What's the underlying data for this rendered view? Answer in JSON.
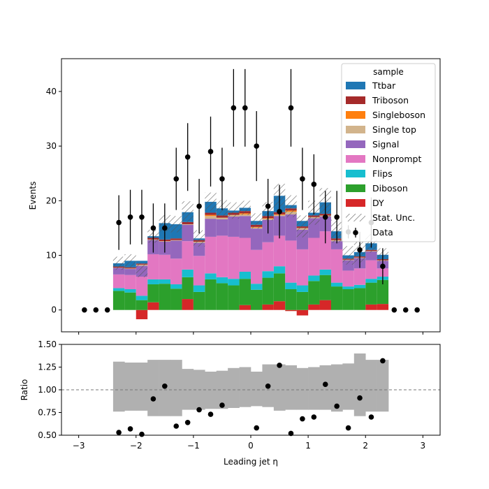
{
  "chart_data": [
    {
      "type": "stacked_histogram",
      "panel": "main",
      "ylabel": "Events",
      "xlabel": "",
      "xlim": [
        -3.3,
        3.3
      ],
      "ylim": [
        -4,
        46
      ],
      "yticks": [
        0,
        10,
        20,
        30,
        40
      ],
      "legend": {
        "title": "sample",
        "placement": "top-right",
        "entries": [
          "Ttbar",
          "Triboson",
          "Singleboson",
          "Single top",
          "Signal",
          "Nonprompt",
          "Flips",
          "Diboson",
          "DY",
          "Stat. Unc.",
          "Data"
        ]
      },
      "bin_edges": [
        -2.4,
        -2.2,
        -2.0,
        -1.8,
        -1.6,
        -1.4,
        -1.2,
        -1.0,
        -0.8,
        -0.6,
        -0.4,
        -0.2,
        0.0,
        0.2,
        0.4,
        0.6,
        0.8,
        1.0,
        1.2,
        1.4,
        1.6,
        1.8,
        2.0,
        2.2,
        2.4
      ],
      "series": [
        {
          "name": "DY",
          "color": "#d62728",
          "values": [
            0,
            0,
            -1.7,
            1.4,
            0,
            0,
            2.0,
            0,
            0,
            0,
            0,
            0.9,
            0,
            1.0,
            1.6,
            -0.2,
            -1.0,
            1.0,
            1.8,
            0,
            0,
            0,
            1.0,
            1.1
          ]
        },
        {
          "name": "Diboson",
          "color": "#2ca02c",
          "values": [
            3.5,
            3.2,
            1.8,
            3.3,
            4.8,
            3.9,
            4.0,
            3.3,
            5.6,
            4.9,
            4.5,
            4.8,
            3.7,
            4.9,
            5.1,
            3.8,
            3.3,
            4.3,
            4.6,
            4.3,
            3.8,
            4.0,
            4.0,
            4.4
          ]
        },
        {
          "name": "Flips",
          "color": "#17becf",
          "values": [
            0.5,
            0.6,
            0.8,
            0.9,
            0.8,
            0.8,
            1.4,
            1.2,
            1.1,
            1.1,
            1.2,
            1.3,
            1.1,
            1.2,
            1.3,
            1.2,
            1.2,
            1.0,
            1.0,
            0.7,
            0.5,
            0.6,
            0.7,
            0.6
          ]
        },
        {
          "name": "Nonprompt",
          "color": "#e377c2",
          "values": [
            2.5,
            2.6,
            3.5,
            4.6,
            4.5,
            4.7,
            5.2,
            5.4,
            6.7,
            7.6,
            7.7,
            6.2,
            6.2,
            5.3,
            5.6,
            7.7,
            6.6,
            6.9,
            7.0,
            6.1,
            2.9,
            3.0,
            3.4,
            1.5
          ]
        },
        {
          "name": "Signal",
          "color": "#9467bd",
          "values": [
            1.2,
            1.1,
            2.0,
            2.6,
            2.4,
            3.3,
            3.0,
            2.4,
            3.3,
            3.0,
            3.7,
            4.0,
            3.9,
            4.1,
            3.6,
            4.8,
            3.6,
            3.6,
            2.7,
            1.5,
            1.9,
            1.9,
            1.6,
            1.4
          ]
        },
        {
          "name": "Single top",
          "color": "#d2b48c",
          "values": [
            0.05,
            0.1,
            0.2,
            0.1,
            0.1,
            0.1,
            0.1,
            0.2,
            0.5,
            0.3,
            0.3,
            0.3,
            0.2,
            0.2,
            0.2,
            0.5,
            0.3,
            0.2,
            0.2,
            0.2,
            0.1,
            0.1,
            0.1,
            0.1
          ]
        },
        {
          "name": "Singleboson",
          "color": "#ff7f0e",
          "values": [
            0,
            0,
            0,
            0,
            0,
            0,
            0,
            0,
            0.2,
            0,
            0,
            0.2,
            0.1,
            0.1,
            0.1,
            0.2,
            0,
            0,
            0,
            0,
            0,
            0,
            0,
            0
          ]
        },
        {
          "name": "Triboson",
          "color": "#a52a2a",
          "values": [
            0.2,
            0.2,
            0.2,
            0.3,
            0.3,
            0.3,
            0.4,
            0.3,
            0.4,
            0.4,
            0.4,
            0.4,
            0.4,
            0.4,
            0.4,
            0.4,
            0.3,
            0.3,
            0.3,
            0.3,
            0.2,
            0.2,
            0.2,
            0.2
          ]
        },
        {
          "name": "Ttbar",
          "color": "#1f77b4",
          "values": [
            0.6,
            1.2,
            0.5,
            0.3,
            3.0,
            2.6,
            1.8,
            0.3,
            2.0,
            1.3,
            0.4,
            0.6,
            0.7,
            0.9,
            3.0,
            0.6,
            1.0,
            0.5,
            2.1,
            1.3,
            0.6,
            0.8,
            1.2,
            0.8
          ]
        }
      ],
      "stat_unc": [
        1.2,
        1.2,
        1.3,
        1.2,
        1.5,
        1.5,
        2.0,
        1.5,
        1.7,
        1.5,
        1.5,
        1.3,
        1.4,
        1.7,
        2.2,
        2.0,
        2.0,
        2.2,
        2.6,
        2.1,
        1.7,
        1.9,
        1.7,
        1.2
      ],
      "data": {
        "name": "Data",
        "x": [
          -2.9,
          -2.7,
          -2.5,
          -2.3,
          -2.1,
          -1.9,
          -1.7,
          -1.5,
          -1.3,
          -1.1,
          -0.9,
          -0.7,
          -0.5,
          -0.3,
          -0.1,
          0.1,
          0.3,
          0.5,
          0.7,
          0.9,
          1.1,
          1.3,
          1.5,
          1.7,
          1.9,
          2.1,
          2.3,
          2.5,
          2.7,
          2.9
        ],
        "y": [
          0,
          0,
          0,
          16,
          17,
          17,
          15,
          15,
          24,
          28,
          19,
          29,
          24,
          37,
          37,
          30,
          19,
          18,
          37,
          24,
          23,
          17,
          17,
          14.3,
          11,
          16,
          8,
          0,
          0,
          0
        ],
        "err": [
          0,
          0,
          0,
          5,
          5,
          5,
          4.5,
          4.5,
          5.7,
          6.2,
          5,
          6.4,
          5.7,
          7.1,
          7.1,
          6.4,
          5,
          4.9,
          7.1,
          5.7,
          5.5,
          4.8,
          4.8,
          1.2,
          3.3,
          4.6,
          3.3,
          0,
          0,
          0
        ]
      }
    },
    {
      "type": "ratio",
      "panel": "ratio",
      "ylabel": "Ratio",
      "xlabel": "Leading jet  η",
      "xlim": [
        -3.3,
        3.3
      ],
      "ylim": [
        0.5,
        1.5
      ],
      "yticks": [
        "0.50",
        "0.75",
        "1.00",
        "1.25",
        "1.50"
      ],
      "xticks": [
        "−3",
        "−2",
        "−1",
        "0",
        "1",
        "2",
        "3"
      ],
      "reference_line": 1.0,
      "band_edges": [
        -2.4,
        -2.2,
        -2.0,
        -1.8,
        -1.6,
        -1.4,
        -1.2,
        -1.0,
        -0.8,
        -0.6,
        -0.4,
        -0.2,
        0.0,
        0.2,
        0.4,
        0.6,
        0.8,
        1.0,
        1.2,
        1.4,
        1.6,
        1.8,
        2.0,
        2.2,
        2.4
      ],
      "band_lo": [
        0.76,
        0.77,
        0.77,
        0.71,
        0.71,
        0.71,
        0.78,
        0.78,
        0.79,
        0.79,
        0.8,
        0.81,
        0.82,
        0.81,
        0.77,
        0.78,
        0.78,
        0.78,
        0.78,
        0.76,
        0.78,
        0.71,
        0.76,
        0.76
      ],
      "band_hi": [
        1.31,
        1.3,
        1.3,
        1.33,
        1.33,
        1.33,
        1.23,
        1.22,
        1.2,
        1.21,
        1.24,
        1.25,
        1.2,
        1.28,
        1.28,
        1.27,
        1.24,
        1.25,
        1.27,
        1.28,
        1.29,
        1.4,
        1.33,
        1.33
      ],
      "points": {
        "x": [
          -2.3,
          -2.1,
          -1.9,
          -1.7,
          -1.5,
          -1.3,
          -1.1,
          -0.9,
          -0.7,
          -0.5,
          0.1,
          0.3,
          0.5,
          0.7,
          0.9,
          1.1,
          1.3,
          1.5,
          1.7,
          1.9,
          2.1,
          2.3
        ],
        "y": [
          0.53,
          0.57,
          0.51,
          0.9,
          1.04,
          0.6,
          0.64,
          0.78,
          0.73,
          0.83,
          0.58,
          1.04,
          1.27,
          0.52,
          0.68,
          0.7,
          1.06,
          0.82,
          0.58,
          0.91,
          0.7,
          1.32
        ]
      }
    }
  ]
}
